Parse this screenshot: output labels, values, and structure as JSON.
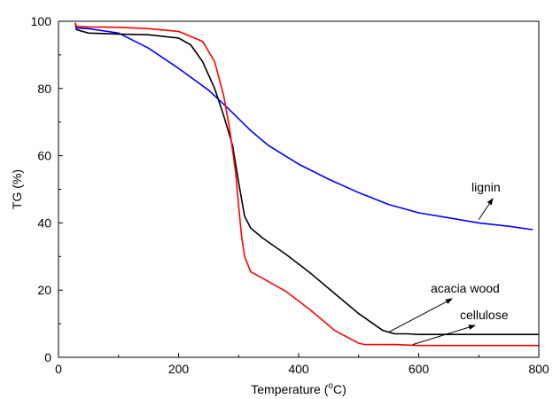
{
  "chart_data": {
    "type": "line",
    "title": "",
    "xlabel": "Temperature (",
    "xlabel_sup": "o",
    "xlabel_tail": "C)",
    "ylabel": "TG (%)",
    "xlim": [
      0,
      800
    ],
    "ylim": [
      0,
      100
    ],
    "x_ticks": [
      0,
      200,
      400,
      600,
      800
    ],
    "y_ticks": [
      0,
      20,
      40,
      60,
      80,
      100
    ],
    "x_tick_labels": [
      "0",
      "200",
      "400",
      "600",
      "800"
    ],
    "y_tick_labels": [
      "0",
      "20",
      "40",
      "60",
      "80",
      "100"
    ],
    "grid": false,
    "series": [
      {
        "name": "lignin",
        "color": "#0000ff",
        "x": [
          28,
          30,
          50,
          100,
          150,
          200,
          250,
          280,
          300,
          320,
          350,
          400,
          450,
          500,
          550,
          600,
          650,
          700,
          750,
          790
        ],
        "y": [
          99.5,
          98.0,
          97.8,
          96.5,
          92.0,
          86.0,
          79.5,
          74.5,
          71.0,
          67.5,
          63.0,
          57.5,
          53.0,
          49.0,
          45.5,
          43.0,
          41.5,
          40.0,
          39.0,
          38.0
        ]
      },
      {
        "name": "acacia wood",
        "color": "#000000",
        "x": [
          28,
          30,
          50,
          100,
          150,
          200,
          220,
          240,
          260,
          275,
          290,
          300,
          310,
          320,
          340,
          380,
          420,
          460,
          500,
          540,
          560,
          580,
          600,
          700,
          800
        ],
        "y": [
          99.5,
          97.5,
          96.5,
          96.2,
          96.0,
          95.0,
          93.0,
          88.0,
          80.0,
          72.0,
          63.0,
          52.0,
          42.0,
          38.5,
          35.5,
          30.5,
          25.0,
          19.0,
          13.0,
          8.0,
          7.0,
          7.0,
          6.8,
          6.8,
          6.8
        ]
      },
      {
        "name": "cellulose",
        "color": "#ff0000",
        "x": [
          28,
          30,
          50,
          100,
          150,
          200,
          240,
          260,
          275,
          285,
          295,
          300,
          305,
          310,
          320,
          340,
          380,
          420,
          460,
          500,
          510,
          560,
          600,
          700,
          800
        ],
        "y": [
          99.5,
          98.5,
          98.3,
          98.2,
          97.8,
          97.0,
          94.0,
          88.0,
          78.0,
          68.0,
          55.0,
          45.0,
          36.0,
          30.0,
          25.5,
          23.5,
          19.5,
          14.0,
          8.0,
          4.2,
          3.8,
          3.8,
          3.5,
          3.5,
          3.5
        ]
      }
    ],
    "annotations": [
      {
        "text": "lignin",
        "series": "lignin",
        "arrow_to_x": 700,
        "arrow_to_y": 41
      },
      {
        "text": "acacia wood",
        "series": "acacia wood",
        "arrow_to_x": 550,
        "arrow_to_y": 7.5
      },
      {
        "text": "cellulose",
        "series": "cellulose",
        "arrow_to_x": 590,
        "arrow_to_y": 3.8
      }
    ]
  }
}
